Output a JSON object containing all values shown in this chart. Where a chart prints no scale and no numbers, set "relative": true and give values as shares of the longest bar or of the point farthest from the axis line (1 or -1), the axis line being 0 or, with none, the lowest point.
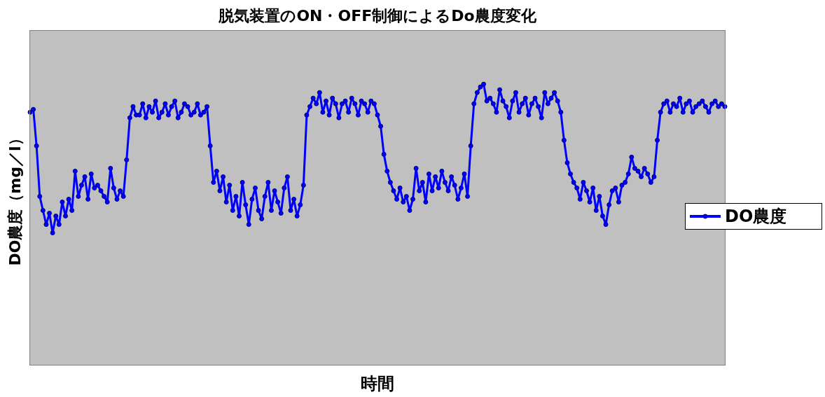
{
  "chart_data": {
    "type": "line",
    "title": "脱気装置のON・OFF制御によるDo農度変化",
    "xlabel": "時間",
    "ylabel": "DO農度（mg／l）",
    "relative": true,
    "legend": "right",
    "marker": "circle",
    "line_style": "solid",
    "categories": [
      null,
      null,
      null,
      null,
      null,
      null,
      null,
      null,
      null,
      null,
      null,
      null,
      null,
      null,
      null,
      null,
      null,
      null,
      null,
      null,
      null,
      null,
      null,
      null,
      null,
      null,
      null,
      null,
      null,
      null,
      null,
      null,
      null,
      null,
      null,
      null,
      null,
      null,
      null,
      null,
      null,
      null,
      null,
      null,
      null,
      null,
      null,
      null,
      null,
      null,
      null,
      null,
      null,
      null,
      null,
      null,
      null,
      null,
      null,
      null,
      null,
      null,
      null,
      null,
      null,
      null,
      null,
      null,
      null,
      null,
      null,
      null,
      null,
      null,
      null,
      null,
      null,
      null,
      null,
      null,
      null,
      null,
      null,
      null,
      null,
      null,
      null,
      null,
      null,
      null,
      null,
      null,
      null,
      null,
      null,
      null,
      null,
      null,
      null,
      null,
      null,
      null,
      null,
      null,
      null,
      null,
      null,
      null,
      null,
      null,
      null,
      null,
      null,
      null,
      null,
      null,
      null,
      null,
      null,
      null,
      null,
      null,
      null,
      null,
      null,
      null,
      null,
      null,
      null,
      null,
      null,
      null,
      null,
      null,
      null,
      null,
      null,
      null,
      null,
      null,
      null,
      null,
      null,
      null,
      null,
      null,
      null,
      null,
      null,
      null,
      null,
      null,
      null,
      null,
      null,
      null,
      null,
      null,
      null,
      null,
      null,
      null,
      null,
      null,
      null,
      null,
      null,
      null,
      null,
      null,
      null,
      null,
      null,
      null,
      null,
      null,
      null,
      null,
      null,
      null,
      null,
      null,
      null,
      null,
      null,
      null,
      null,
      null,
      null,
      null,
      null,
      null,
      null,
      null,
      null,
      null,
      null,
      null,
      null,
      null,
      null,
      null,
      null,
      null,
      null,
      null,
      null,
      null,
      null,
      null,
      null,
      null,
      null,
      null,
      null,
      null,
      null
    ],
    "series": [
      {
        "name": "DO農度",
        "color": "#0000ff",
        "values": [
          0.9,
          0.91,
          0.78,
          0.6,
          0.55,
          0.5,
          0.54,
          0.47,
          0.53,
          0.5,
          0.58,
          0.53,
          0.59,
          0.55,
          0.69,
          0.6,
          0.64,
          0.67,
          0.59,
          0.68,
          0.63,
          0.64,
          0.62,
          0.6,
          0.58,
          0.7,
          0.63,
          0.59,
          0.62,
          0.6,
          0.73,
          0.88,
          0.92,
          0.89,
          0.89,
          0.93,
          0.88,
          0.92,
          0.9,
          0.94,
          0.88,
          0.9,
          0.93,
          0.89,
          0.92,
          0.94,
          0.88,
          0.9,
          0.93,
          0.92,
          0.89,
          0.9,
          0.93,
          0.89,
          0.9,
          0.92,
          0.78,
          0.65,
          0.69,
          0.62,
          0.67,
          0.58,
          0.64,
          0.55,
          0.6,
          0.53,
          0.65,
          0.57,
          0.5,
          0.59,
          0.63,
          0.55,
          0.52,
          0.6,
          0.65,
          0.55,
          0.62,
          0.58,
          0.54,
          0.63,
          0.67,
          0.55,
          0.59,
          0.53,
          0.57,
          0.64,
          0.89,
          0.92,
          0.95,
          0.93,
          0.97,
          0.9,
          0.94,
          0.89,
          0.95,
          0.93,
          0.88,
          0.93,
          0.94,
          0.9,
          0.95,
          0.93,
          0.89,
          0.94,
          0.93,
          0.9,
          0.94,
          0.93,
          0.89,
          0.85,
          0.75,
          0.69,
          0.65,
          0.62,
          0.59,
          0.63,
          0.58,
          0.6,
          0.55,
          0.59,
          0.7,
          0.62,
          0.65,
          0.58,
          0.68,
          0.62,
          0.67,
          0.63,
          0.69,
          0.65,
          0.62,
          0.67,
          0.64,
          0.59,
          0.63,
          0.68,
          0.6,
          0.78,
          0.93,
          0.97,
          0.99,
          1,
          0.94,
          0.95,
          0.93,
          0.9,
          0.98,
          0.94,
          0.92,
          0.88,
          0.94,
          0.97,
          0.9,
          0.93,
          0.95,
          0.89,
          0.93,
          0.95,
          0.92,
          0.88,
          0.97,
          0.93,
          0.95,
          0.97,
          0.94,
          0.9,
          0.8,
          0.72,
          0.68,
          0.65,
          0.63,
          0.59,
          0.65,
          0.62,
          0.58,
          0.63,
          0.55,
          0.6,
          0.53,
          0.5,
          0.57,
          0.62,
          0.63,
          0.58,
          0.64,
          0.65,
          0.68,
          0.74,
          0.7,
          0.69,
          0.67,
          0.7,
          0.68,
          0.65,
          0.67,
          0.8,
          0.9,
          0.93,
          0.94,
          0.9,
          0.93,
          0.92,
          0.95,
          0.9,
          0.93,
          0.94,
          0.9,
          0.92,
          0.93,
          0.94,
          0.92,
          0.9,
          0.93,
          0.94,
          0.92,
          0.93,
          0.92
        ]
      }
    ]
  }
}
